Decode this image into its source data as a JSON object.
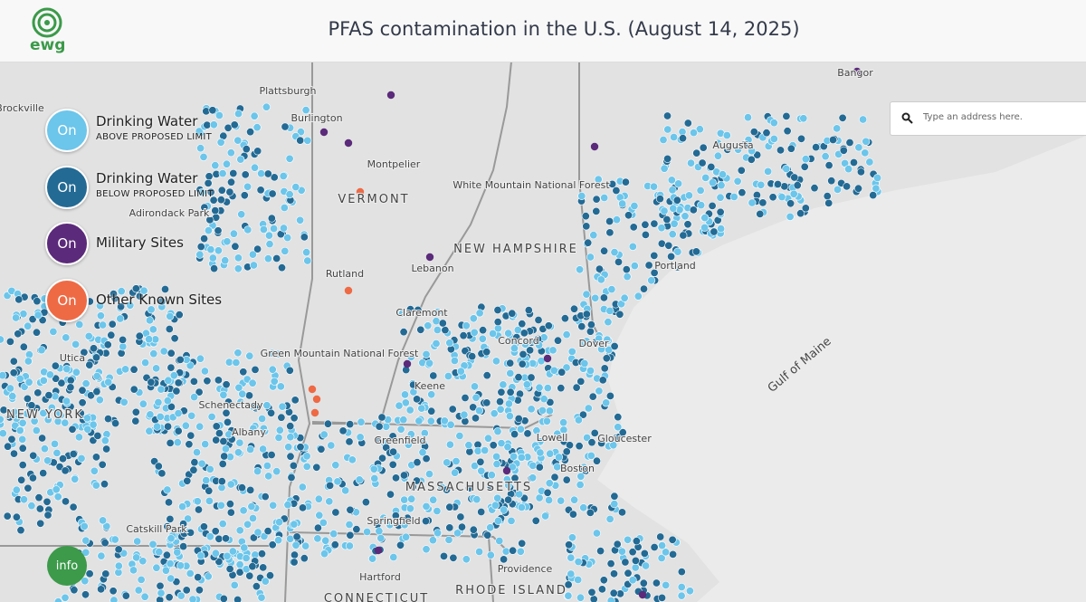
{
  "header": {
    "logo": "ewg",
    "title": "PFAS contamination in the U.S. (August 14, 2025)"
  },
  "legend": {
    "items": [
      {
        "button": "On",
        "label": "Drinking Water",
        "sublabel": "ABOVE PROPOSED LIMIT"
      },
      {
        "button": "On",
        "label": "Drinking Water",
        "sublabel": "BELOW PROPOSED LIMIT"
      },
      {
        "button": "On",
        "label": "Military Sites"
      },
      {
        "button": "On",
        "label": "Other Known Sites"
      }
    ]
  },
  "search": {
    "placeholder": "Type an address here."
  },
  "info": "info",
  "map": {
    "labels": [
      "Plattsburgh",
      "Burlington",
      "Brockville",
      "Montpelier",
      "VERMONT",
      "Adirondack Park",
      "Augusta",
      "White Mountain National Forest",
      "NEW HAMPSHIRE",
      "Portland",
      "Rutland",
      "Lebanon",
      "Claremont",
      "Concord",
      "Dover",
      "Gulf of Maine",
      "Utica",
      "Green Mountain National Forest",
      "Keene",
      "NEW YORK",
      "Schenectady",
      "Albany",
      "Lowell",
      "Gloucester",
      "Boston",
      "Greenfield",
      "MASSACHUSETTS",
      "Springfield",
      "Catskill Park",
      "Hartford",
      "CONNECTICUT",
      "Providence",
      "RHODE ISLAND",
      "Bangor"
    ]
  }
}
